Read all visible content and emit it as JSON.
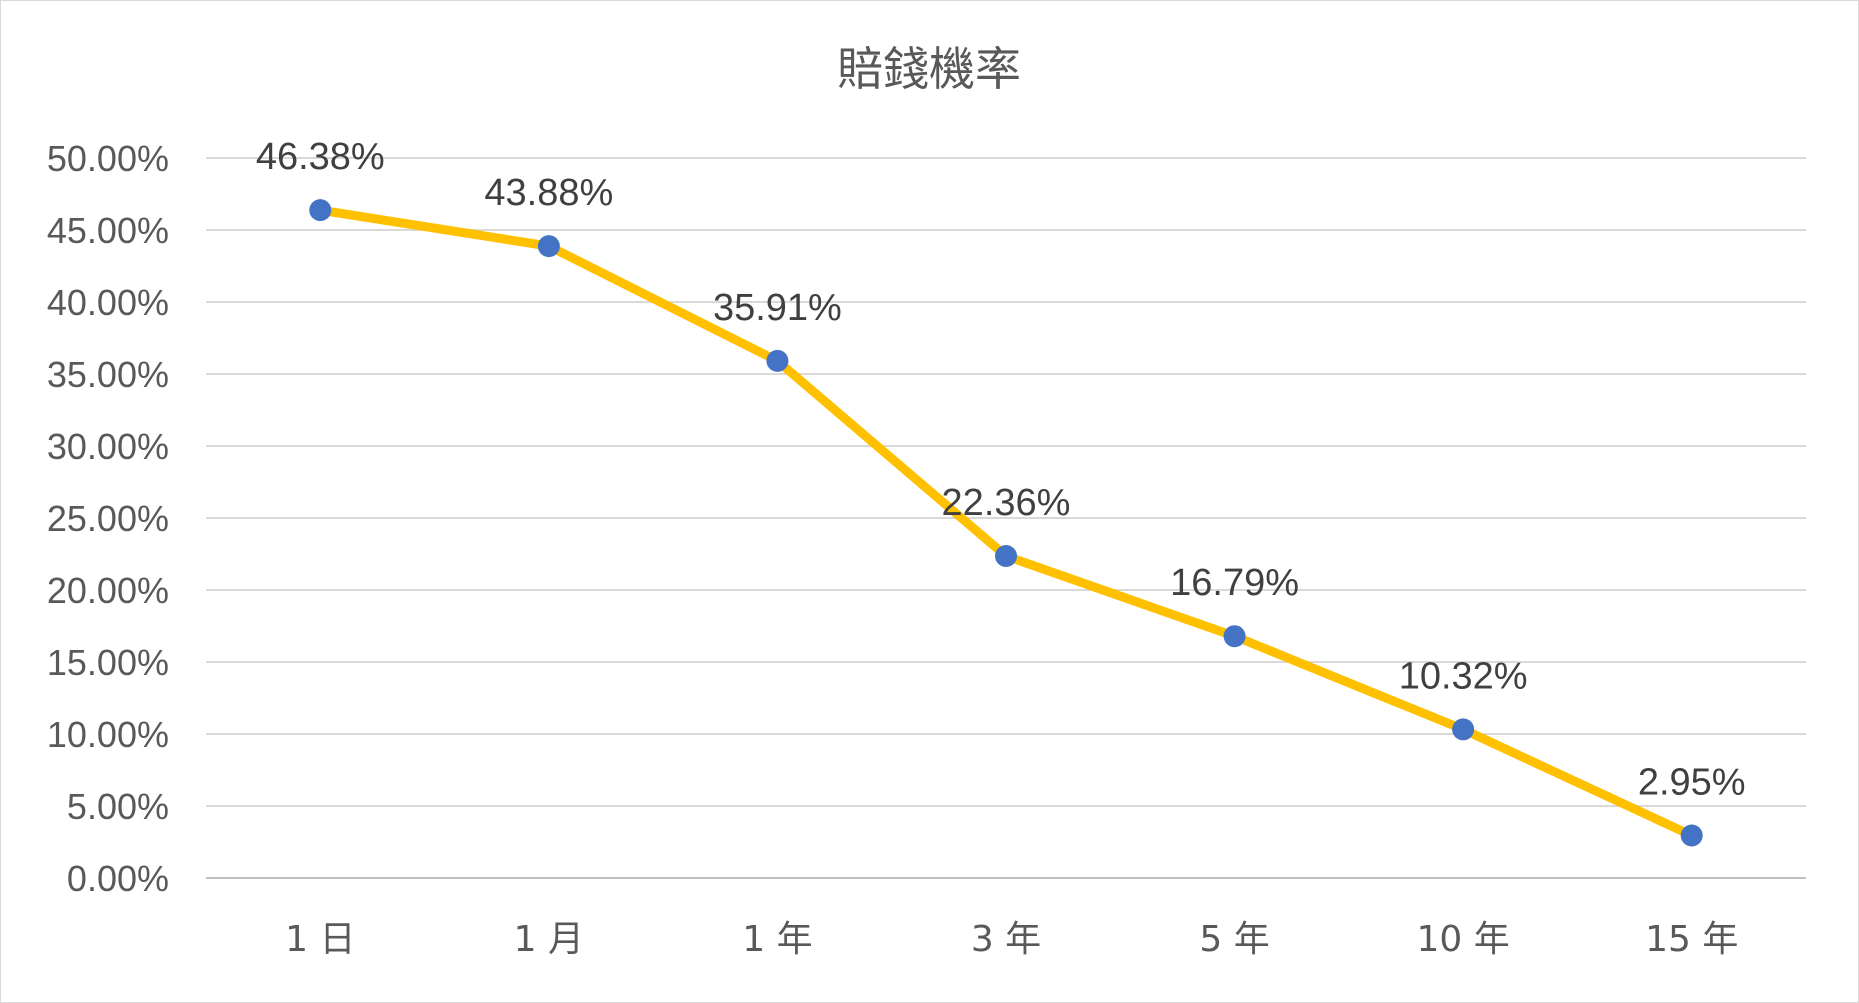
{
  "chart_data": {
    "type": "line",
    "title": "賠錢機率",
    "categories": [
      "1 日",
      "1 月",
      "1 年",
      "3 年",
      "5 年",
      "10 年",
      "15 年"
    ],
    "series": [
      {
        "values": [
          46.38,
          43.88,
          35.91,
          22.36,
          16.79,
          10.32,
          2.95
        ],
        "labels": [
          "46.38%",
          "43.88%",
          "35.91%",
          "22.36%",
          "16.79%",
          "10.32%",
          "2.95%"
        ]
      }
    ],
    "ylim": [
      0,
      50
    ],
    "yticks": [
      0,
      5,
      10,
      15,
      20,
      25,
      30,
      35,
      40,
      45,
      50
    ],
    "ytick_labels": [
      "0.00%",
      "5.00%",
      "10.00%",
      "15.00%",
      "20.00%",
      "25.00%",
      "30.00%",
      "35.00%",
      "40.00%",
      "45.00%",
      "50.00%"
    ],
    "xlabel": "",
    "ylabel": "",
    "grid": true,
    "legend": "none",
    "line_color": "#FFC000",
    "marker_color": "#4472C4"
  }
}
